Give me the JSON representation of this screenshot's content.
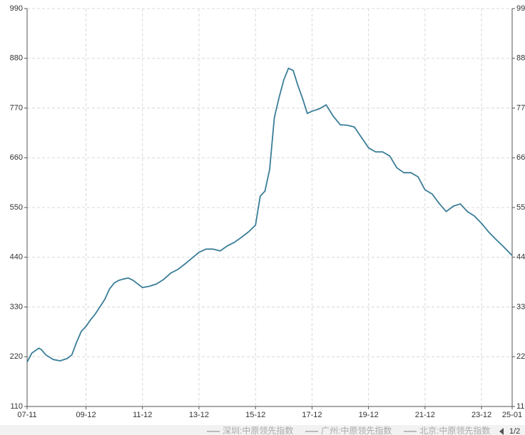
{
  "chart_data": {
    "type": "line",
    "x": [
      "07-11",
      "08-01",
      "08-04",
      "08-05",
      "08-07",
      "08-10",
      "09-01",
      "09-04",
      "09-06",
      "09-08",
      "09-10",
      "09-12",
      "10-02",
      "10-04",
      "10-06",
      "10-08",
      "10-10",
      "10-12",
      "11-02",
      "11-04",
      "11-06",
      "11-08",
      "11-10",
      "11-12",
      "12-03",
      "12-06",
      "12-09",
      "12-12",
      "13-03",
      "13-06",
      "13-09",
      "13-12",
      "14-03",
      "14-06",
      "14-09",
      "14-12",
      "15-03",
      "15-06",
      "15-09",
      "15-12",
      "16-02",
      "16-04",
      "16-06",
      "16-08",
      "16-10",
      "16-12",
      "17-02",
      "17-04",
      "17-06",
      "17-08",
      "17-10",
      "17-12",
      "18-03",
      "18-06",
      "18-09",
      "18-12",
      "19-03",
      "19-06",
      "19-09",
      "19-12",
      "20-03",
      "20-06",
      "20-09",
      "20-12",
      "21-03",
      "21-06",
      "21-09",
      "21-12",
      "22-03",
      "22-06",
      "22-09",
      "22-12",
      "23-03",
      "23-06",
      "23-09",
      "23-12",
      "24-03",
      "24-06",
      "24-09",
      "24-12",
      "25-01"
    ],
    "series": [
      {
        "color": "#3a7d97",
        "values": [
          208,
          228,
          239,
          236,
          224,
          214,
          211,
          216,
          224,
          252,
          276,
          287,
          302,
          315,
          331,
          347,
          370,
          383,
          389,
          392,
          394,
          389,
          381,
          373,
          376,
          381,
          391,
          405,
          413,
          425,
          438,
          451,
          458,
          458,
          454,
          465,
          473,
          484,
          496,
          511,
          575,
          586,
          634,
          749,
          793,
          832,
          858,
          853,
          820,
          791,
          758,
          763,
          768,
          777,
          752,
          733,
          732,
          728,
          705,
          682,
          673,
          673,
          664,
          638,
          627,
          627,
          618,
          589,
          580,
          559,
          541,
          553,
          558,
          541,
          531,
          515,
          496,
          480,
          465,
          449,
          444
        ]
      }
    ],
    "xlim": [
      "07-11",
      "25-01"
    ],
    "xticks": [
      "07-11",
      "09-12",
      "11-12",
      "13-12",
      "15-12",
      "17-12",
      "19-12",
      "21-12",
      "23-12",
      "25-01"
    ],
    "ylim": [
      110,
      990
    ],
    "yticks": [
      110,
      220,
      330,
      440,
      550,
      660,
      770,
      880,
      990
    ],
    "y2lim": [
      110,
      990
    ],
    "y2ticks": [
      110,
      220,
      330,
      440,
      550,
      660,
      770,
      880,
      990
    ],
    "grid": true,
    "legend": [
      "深圳:中原领先指数",
      "广州:中原领先指数",
      "北京:中原领先指数"
    ],
    "legend_page": "1/2"
  }
}
